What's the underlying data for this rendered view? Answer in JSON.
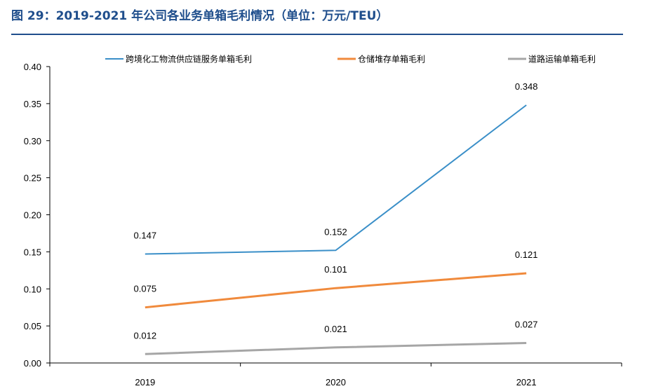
{
  "title": "图 29：2019-2021 年公司各业务单箱毛利情况（单位：万元/TEU）",
  "chart_data": {
    "type": "line",
    "title": "",
    "xlabel": "",
    "ylabel": "",
    "categories": [
      "2019",
      "2020",
      "2021"
    ],
    "ylim": [
      0,
      0.4
    ],
    "yticks": [
      "0.00",
      "0.05",
      "0.10",
      "0.15",
      "0.20",
      "0.25",
      "0.30",
      "0.35",
      "0.40"
    ],
    "grid": false,
    "legend_position": "top",
    "series": [
      {
        "name": "跨境化工物流供应链服务单箱毛利",
        "color": "#3a8fc8",
        "values": [
          0.147,
          0.152,
          0.348
        ],
        "labels": [
          "0.147",
          "0.152",
          "0.348"
        ]
      },
      {
        "name": "仓储堆存单箱毛利",
        "color": "#f08a3c",
        "values": [
          0.075,
          0.101,
          0.121
        ],
        "labels": [
          "0.075",
          "0.101",
          "0.121"
        ]
      },
      {
        "name": "道路运输单箱毛利",
        "color": "#a6a6a6",
        "values": [
          0.012,
          0.021,
          0.027
        ],
        "labels": [
          "0.012",
          "0.021",
          "0.027"
        ]
      }
    ]
  }
}
